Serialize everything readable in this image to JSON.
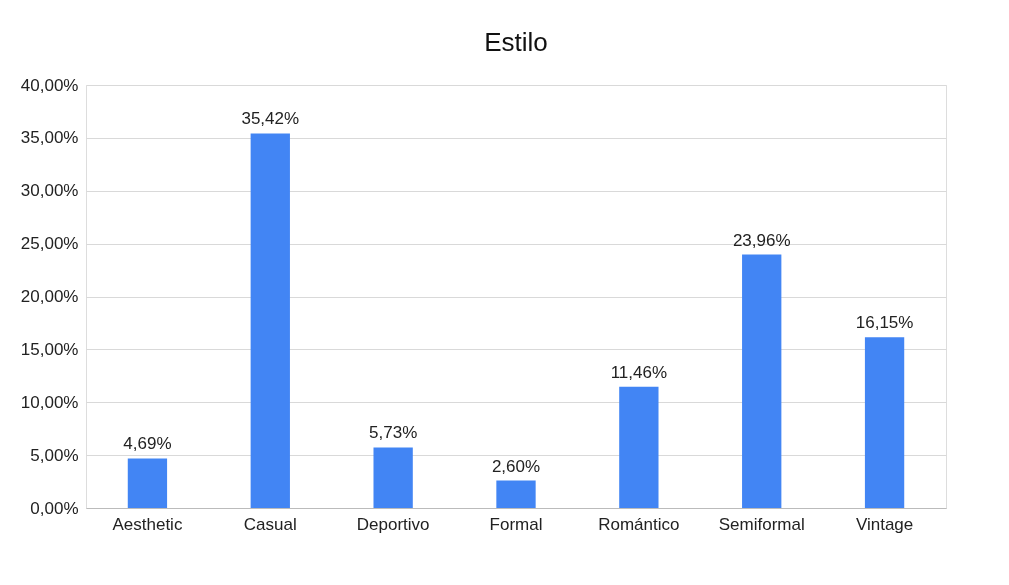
{
  "chart_data": {
    "type": "bar",
    "title": "Estilo",
    "categories": [
      "Aesthetic",
      "Casual",
      "Deportivo",
      "Formal",
      "Romántico",
      "Semiformal",
      "Vintage"
    ],
    "values": [
      4.69,
      35.42,
      5.73,
      2.6,
      11.46,
      23.96,
      16.15
    ],
    "value_labels": [
      "4,69%",
      "35,42%",
      "5,73%",
      "2,60%",
      "11,46%",
      "23,96%",
      "16,15%"
    ],
    "color": "#4285f4",
    "ylim": [
      0,
      40
    ],
    "yticks": [
      {
        "value": 0,
        "label": "0,00%"
      },
      {
        "value": 5,
        "label": "5,00%"
      },
      {
        "value": 10,
        "label": "10,00%"
      },
      {
        "value": 15,
        "label": "15,00%"
      },
      {
        "value": 20,
        "label": "20,00%"
      },
      {
        "value": 25,
        "label": "25,00%"
      },
      {
        "value": 30,
        "label": "30,00%"
      },
      {
        "value": 35,
        "label": "35,00%"
      },
      {
        "value": 40,
        "label": "40,00%"
      }
    ],
    "grid": "y"
  }
}
